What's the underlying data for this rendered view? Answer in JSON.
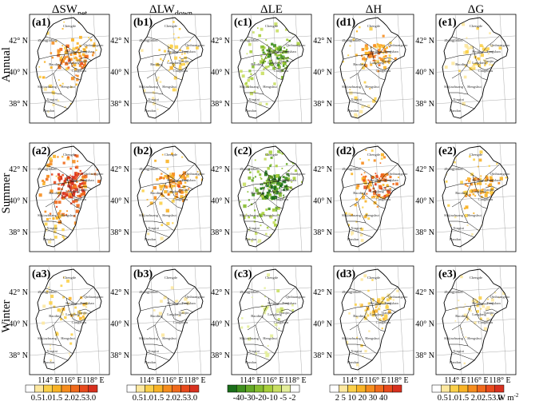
{
  "columns": [
    {
      "label": "ΔSW",
      "sub": "net"
    },
    {
      "label": "ΔLW",
      "sub": "down"
    },
    {
      "label": "ΔLE",
      "sub": ""
    },
    {
      "label": "ΔH",
      "sub": ""
    },
    {
      "label": "ΔG",
      "sub": ""
    }
  ],
  "rows": [
    "Annual",
    "Summer",
    "Winter"
  ],
  "panels": [
    [
      "(a1)",
      "(b1)",
      "(c1)",
      "(d1)",
      "(e1)"
    ],
    [
      "(a2)",
      "(b2)",
      "(c2)",
      "(d2)",
      "(e2)"
    ],
    [
      "(a3)",
      "(b3)",
      "(c3)",
      "(d3)",
      "(e3)"
    ]
  ],
  "lat_ticks": [
    "42° N",
    "40° N",
    "38° N"
  ],
  "lon_ticks": [
    "114° E",
    "116° E",
    "118° E"
  ],
  "places": [
    "Chengde",
    "Zhangjiakou",
    "Beijing",
    "Tianjin",
    "Langfang",
    "Baoding",
    "Tangshan",
    "Qinhuangdao",
    "Cangzhou",
    "Hengshui",
    "Shijiazhuang",
    "Xingtai",
    "Handan"
  ],
  "colorbars": [
    {
      "labels": "0.51.01.5 2.02.53.0",
      "colors": [
        "#ffffff",
        "#fde8a0",
        "#fbd04a",
        "#f9b326",
        "#f68d1e",
        "#f06a1c",
        "#e84a1c",
        "#d7301f"
      ]
    },
    {
      "labels": "0.51.01.5 2.02.53.0",
      "colors": [
        "#ffffff",
        "#fde8a0",
        "#fbd04a",
        "#f9b326",
        "#f68d1e",
        "#f06a1c",
        "#e84a1c",
        "#d7301f"
      ]
    },
    {
      "labels": "-40-30-20-10 -5 -2",
      "colors": [
        "#1b6e1b",
        "#3f8f1f",
        "#64a826",
        "#86bd2f",
        "#a8cf3b",
        "#c9df63",
        "#e4ee9b",
        "#ffffff"
      ]
    },
    {
      "labels": "2 5 10 20 30 40",
      "colors": [
        "#ffffff",
        "#fde8a0",
        "#fbd04a",
        "#f9b326",
        "#f68d1e",
        "#f06a1c",
        "#e84a1c",
        "#d7301f"
      ]
    },
    {
      "labels": "0.51.01.5 2.02.53.0",
      "colors": [
        "#ffffff",
        "#fde8a0",
        "#fbd04a",
        "#f9b326",
        "#f68d1e",
        "#f06a1c",
        "#e84a1c",
        "#d7301f"
      ]
    }
  ],
  "unit": "W m",
  "unit_exp": "-2"
}
